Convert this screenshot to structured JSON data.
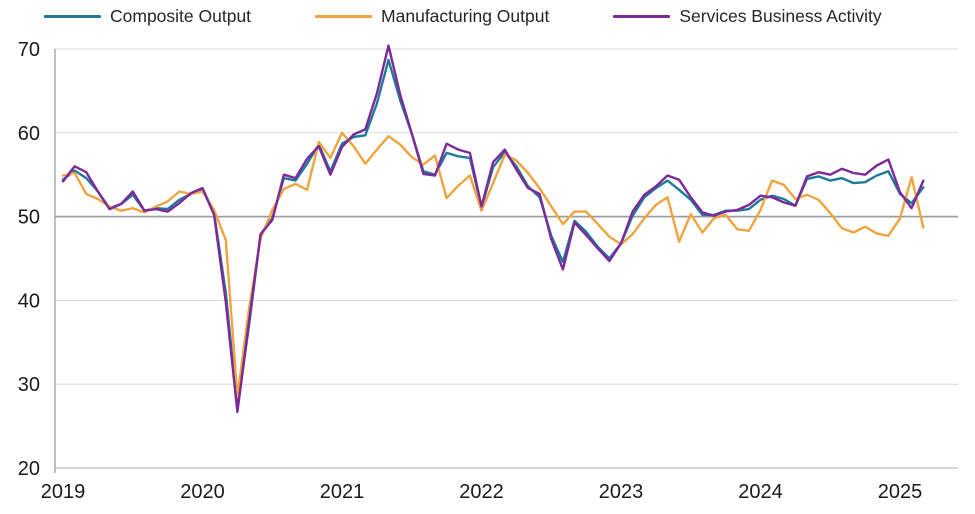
{
  "chart_data": {
    "type": "line",
    "title": "",
    "x_unit": "month",
    "x_start": "2019-01",
    "x_end": "2025-03",
    "x_tick_labels": [
      "2019",
      "2020",
      "2021",
      "2022",
      "2023",
      "2024",
      "2025"
    ],
    "y_ticks": [
      70,
      60,
      50,
      40,
      30,
      20
    ],
    "ylim": [
      20,
      70
    ],
    "reference_line": 50,
    "grid": "horizontal",
    "legend_position": "top",
    "axis_color": "#a6a6a6",
    "gridline_color": "#d9d9d9",
    "reference_line_color": "#9e9e9e",
    "series": [
      {
        "name": "Composite Output",
        "color": "#1F7A96",
        "values": [
          54.4,
          55.5,
          54.6,
          53.0,
          51.0,
          51.5,
          52.6,
          50.7,
          51.0,
          50.9,
          52.0,
          52.7,
          53.3,
          50.4,
          40.9,
          27.0,
          37.0,
          47.9,
          49.8,
          54.6,
          54.3,
          56.3,
          58.6,
          55.4,
          58.7,
          59.5,
          59.7,
          63.5,
          68.7,
          63.9,
          59.9,
          55.4,
          55.0,
          57.6,
          57.2,
          57.0,
          51.1,
          55.9,
          57.7,
          56.0,
          53.6,
          52.3,
          47.7,
          44.6,
          49.5,
          48.2,
          46.4,
          45.0,
          46.8,
          50.1,
          52.3,
          53.4,
          54.3,
          53.2,
          52.0,
          50.2,
          50.2,
          50.7,
          50.7,
          50.9,
          52.0,
          52.5,
          52.1,
          51.3,
          54.5,
          54.8,
          54.3,
          54.6,
          54.0,
          54.1,
          54.9,
          55.4,
          52.7,
          51.6,
          53.5
        ]
      },
      {
        "name": "Manufacturing Output",
        "color": "#F0A43F",
        "values": [
          54.9,
          55.2,
          52.7,
          52.1,
          51.2,
          50.7,
          51.0,
          50.5,
          51.2,
          51.8,
          53.0,
          52.7,
          53.0,
          50.8,
          47.2,
          28.5,
          39.0,
          47.4,
          50.8,
          53.3,
          53.9,
          53.2,
          58.9,
          57.0,
          60.0,
          58.4,
          56.3,
          58.0,
          59.6,
          58.6,
          57.1,
          56.2,
          57.3,
          52.2,
          53.7,
          54.9,
          50.7,
          54.0,
          57.4,
          56.7,
          55.2,
          53.4,
          51.2,
          49.1,
          50.6,
          50.6,
          49.1,
          47.6,
          46.7,
          47.9,
          49.8,
          51.4,
          52.3,
          47.0,
          50.3,
          48.1,
          49.8,
          50.2,
          48.5,
          48.3,
          50.8,
          54.3,
          53.8,
          52.1,
          52.6,
          52.0,
          50.4,
          48.6,
          48.1,
          48.8,
          48.0,
          47.7,
          49.8,
          54.7,
          48.7
        ]
      },
      {
        "name": "Services Business Activity",
        "color": "#7C2A99",
        "values": [
          54.2,
          56.0,
          55.3,
          53.0,
          50.9,
          51.5,
          53.0,
          50.7,
          50.9,
          50.6,
          51.6,
          52.8,
          53.4,
          50.2,
          39.8,
          26.7,
          37.5,
          47.9,
          49.6,
          55.0,
          54.6,
          56.9,
          58.4,
          55.0,
          58.3,
          59.8,
          60.4,
          64.7,
          70.4,
          64.6,
          59.9,
          55.1,
          54.9,
          58.7,
          58.0,
          57.6,
          51.2,
          56.5,
          58.0,
          55.6,
          53.4,
          52.7,
          47.3,
          43.7,
          49.3,
          47.8,
          46.2,
          44.7,
          46.8,
          50.6,
          52.6,
          53.6,
          54.9,
          54.4,
          52.3,
          50.5,
          50.1,
          50.6,
          50.8,
          51.4,
          52.5,
          52.3,
          51.7,
          51.3,
          54.8,
          55.3,
          55.0,
          55.7,
          55.2,
          55.0,
          56.1,
          56.8,
          52.9,
          51.0,
          54.3
        ]
      }
    ]
  }
}
